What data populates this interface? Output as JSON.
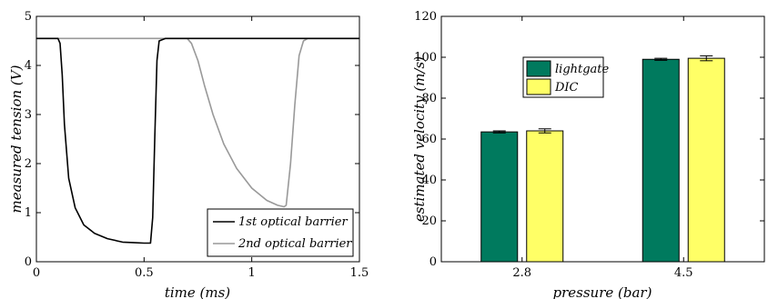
{
  "chart_data": [
    {
      "type": "line",
      "xlabel": "time (ms)",
      "ylabel": "measured tension (V)",
      "xlim": [
        0,
        1.5
      ],
      "ylim": [
        0,
        5
      ],
      "xticks": [
        "0",
        "0.5",
        "1",
        "1.5"
      ],
      "yticks": [
        "0",
        "1",
        "2",
        "3",
        "4",
        "5"
      ],
      "grid": false,
      "legend_position": "bottom-right",
      "series": [
        {
          "name": "1st optical barrier",
          "color": "#000000",
          "x": [
            0,
            0.1,
            0.11,
            0.12,
            0.13,
            0.15,
            0.18,
            0.22,
            0.27,
            0.33,
            0.4,
            0.45,
            0.5,
            0.53,
            0.54,
            0.55,
            0.56,
            0.57,
            0.6,
            0.7,
            1.0,
            1.5
          ],
          "y": [
            4.55,
            4.55,
            4.45,
            3.8,
            2.8,
            1.7,
            1.1,
            0.75,
            0.58,
            0.47,
            0.4,
            0.39,
            0.38,
            0.38,
            0.9,
            2.6,
            4.1,
            4.5,
            4.55,
            4.55,
            4.55,
            4.55
          ]
        },
        {
          "name": "2nd optical barrier",
          "color": "#999999",
          "x": [
            0,
            0.6,
            0.7,
            0.72,
            0.75,
            0.78,
            0.82,
            0.87,
            0.93,
            1.0,
            1.07,
            1.12,
            1.15,
            1.16,
            1.18,
            1.2,
            1.22,
            1.24,
            1.26,
            1.3,
            1.5
          ],
          "y": [
            4.55,
            4.55,
            4.55,
            4.45,
            4.1,
            3.6,
            3.0,
            2.4,
            1.9,
            1.5,
            1.25,
            1.15,
            1.12,
            1.15,
            2.0,
            3.2,
            4.2,
            4.5,
            4.55,
            4.55,
            4.55
          ]
        }
      ]
    },
    {
      "type": "bar",
      "xlabel": "pressure (bar)",
      "ylabel": "estimated velocity (m/s)",
      "categories": [
        "2.8",
        "4.5"
      ],
      "ylim": [
        0,
        120
      ],
      "yticks": [
        "0",
        "20",
        "40",
        "60",
        "80",
        "100",
        "120"
      ],
      "grid": false,
      "legend_position": "top-center",
      "series": [
        {
          "name": "lightgate",
          "color": "#007a5e",
          "values": [
            63.5,
            99
          ],
          "errors": [
            0.5,
            0.5
          ]
        },
        {
          "name": "DIC",
          "color": "#ffff66",
          "values": [
            64,
            99.5
          ],
          "errors": [
            1,
            1.2
          ]
        }
      ]
    }
  ]
}
